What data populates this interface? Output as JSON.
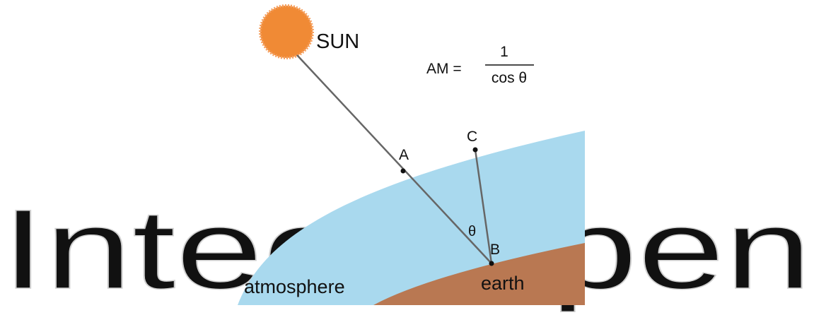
{
  "watermark": "IntechOpen",
  "labels": {
    "sun": "SUN",
    "formula_lhs": "AM =",
    "numerator": "1",
    "denominator": "cos θ",
    "point_a": "A",
    "point_b": "B",
    "point_c": "C",
    "angle": "θ",
    "atmosphere": "atmosphere",
    "earth": "earth"
  }
}
